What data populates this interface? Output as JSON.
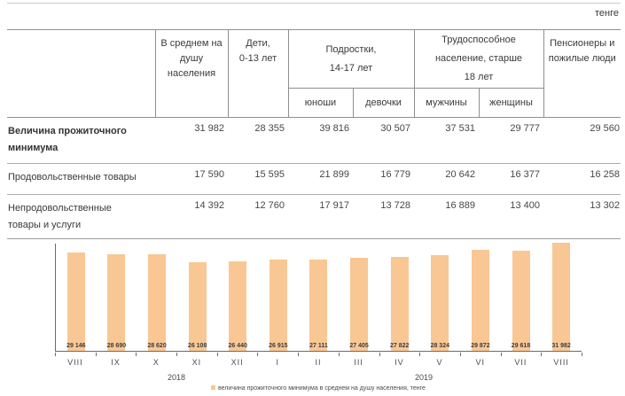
{
  "page": {
    "unit_label": "тенге"
  },
  "table": {
    "col_groups": [
      {
        "label": "В среднем на\nдушу\nнаселения"
      },
      {
        "label": "Дети,\n0-13 лет"
      },
      {
        "label": "Подростки,\n14-17 лет",
        "children": [
          "юноши",
          "девочки"
        ]
      },
      {
        "label": "Трудоспособное\nнаселение, старше\n18 лет",
        "children": [
          "мужчины",
          "женщины"
        ]
      },
      {
        "label": "Пенсионеры и\nпожилые люди"
      }
    ],
    "rows": [
      {
        "label": "Величина прожиточного\nминимума",
        "bold": true,
        "values": [
          "31 982",
          "28 355",
          "39 816",
          "30 507",
          "37 531",
          "29 777",
          "29 560"
        ]
      },
      {
        "label": "Продовольственные товары",
        "bold": false,
        "values": [
          "17 590",
          "15 595",
          "21 899",
          "16 779",
          "20 642",
          "16 377",
          "16 258"
        ]
      },
      {
        "label": "Непродовольственные\nтовары и услуги",
        "bold": false,
        "values": [
          "14 392",
          "12 760",
          "17 917",
          "13 728",
          "16 889",
          "13 400",
          "13 302"
        ]
      }
    ]
  },
  "chart_data": {
    "type": "bar",
    "categories": [
      "VIII",
      "IX",
      "X",
      "XI",
      "XII",
      "I",
      "II",
      "III",
      "IV",
      "V",
      "VI",
      "VII",
      "VIII"
    ],
    "values": [
      29146,
      28690,
      28620,
      26108,
      26440,
      26915,
      27111,
      27405,
      27822,
      28324,
      29872,
      29618,
      31982
    ],
    "value_labels": [
      "29 146",
      "28 690",
      "28 620",
      "26 108",
      "26 440",
      "26 915",
      "27 111",
      "27 405",
      "27 822",
      "28 324",
      "29 872",
      "29 618",
      "31 982"
    ],
    "year_groups": [
      {
        "label": "2018",
        "span": [
          0,
          4
        ]
      },
      {
        "label": "2019",
        "span": [
          5,
          12
        ]
      }
    ],
    "legend": "величина прожиточного минимума в среднем на душу населения, тенге",
    "title": "",
    "xlabel": "",
    "ylabel": "",
    "ylim": [
      0,
      31982
    ],
    "grid": false,
    "legend_position": "bottom",
    "bar_color": "#f9c794"
  }
}
